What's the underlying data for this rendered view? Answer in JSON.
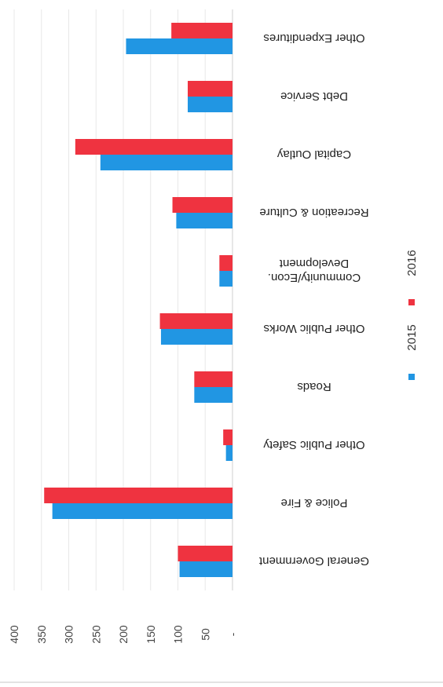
{
  "chart_data": {
    "type": "bar",
    "orientation": "horizontal",
    "image_rotation_deg": 180,
    "title": "",
    "xlabel": "",
    "ylabel": "",
    "categories": [
      "General Government",
      "Police & Fire",
      "Other Public Safety",
      "Roads",
      "Other Public Works",
      "Community/Econ. Development",
      "Recreation & Culture",
      "Capital Outlay",
      "Debt Service",
      "Other Expenditures"
    ],
    "series": [
      {
        "name": "2015",
        "color": "#2196e3",
        "values": [
          97,
          330,
          12,
          70,
          131,
          24,
          103,
          242,
          82,
          195
        ]
      },
      {
        "name": "2016",
        "color": "#ef3340",
        "values": [
          100,
          345,
          17,
          70,
          133,
          24,
          110,
          288,
          82,
          112
        ]
      }
    ],
    "value_axis": {
      "range": [
        0,
        400
      ],
      "tick_labels": [
        "-",
        "50",
        "100",
        "150",
        "200",
        "250",
        "300",
        "350",
        "400"
      ]
    },
    "grid": true,
    "legend": {
      "position": "bottom",
      "entries": [
        "2015",
        "2016"
      ]
    }
  }
}
